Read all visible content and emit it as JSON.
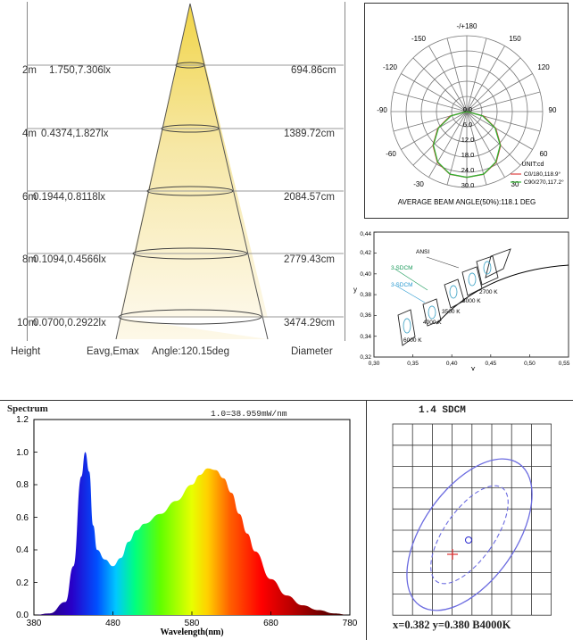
{
  "illuminance": {
    "rows": [
      {
        "height": "2m",
        "eavg_emax": "1.750,7.306lx",
        "diameter": "694.86cm"
      },
      {
        "height": "4m",
        "eavg_emax": "0.4374,1.827lx",
        "diameter": "1389.72cm"
      },
      {
        "height": "6m",
        "eavg_emax": "0.1944,0.8118lx",
        "diameter": "2084.57cm"
      },
      {
        "height": "8m",
        "eavg_emax": "0.1094,0.4566lx",
        "diameter": "2779.43cm"
      },
      {
        "height": "10m",
        "eavg_emax": "0.0700,0.2922lx",
        "diameter": "3474.29cm"
      }
    ],
    "footer": {
      "height": "Height",
      "eavg": "Eavg,Emax",
      "angle": "Angle:120.15deg",
      "diameter": "Diameter"
    }
  },
  "polar": {
    "angle_labels": {
      "top": "-/+180",
      "a_150l": "-150",
      "a_150r": "150",
      "a_120l": "-120",
      "a_120r": "120",
      "a_90l": "-90",
      "a_90r": "90",
      "a_60l": "-60",
      "a_60r": "60",
      "a_30l": "-30",
      "a_30r": "30"
    },
    "radial_labels": [
      "0.0",
      "6.0",
      "12.0",
      "18.0",
      "24.0",
      "30.0"
    ],
    "unit": "UNIT:cd",
    "legend": [
      {
        "label": "C0/180,118.9°",
        "color": "#e04040"
      },
      {
        "label": "C90/270,117.2°",
        "color": "#30b030"
      }
    ],
    "beam_text": "AVERAGE BEAM ANGLE(50%):118.1 DEG"
  },
  "cie": {
    "x_ticks": [
      "0,30",
      "0,35",
      "0,40",
      "0,45",
      "0,50",
      "0,55"
    ],
    "y_ticks": [
      "0,32",
      "0,34",
      "0,36",
      "0,38",
      "0,40",
      "0,42",
      "0,44"
    ],
    "x_label": "X",
    "y_label": "y",
    "annotations": {
      "ansi": "ANSI",
      "sdcm3a": "3 SDCM",
      "sdcm3b": "3 SDCM"
    },
    "cct_labels": [
      "2700 K",
      "3000 K",
      "3500 K",
      "4000 K",
      "6000 K"
    ]
  },
  "spectrum": {
    "title": "Spectrum",
    "scale_note": "1.0=38.959mW/nm",
    "x_label": "Wavelength(nm)",
    "x_ticks": [
      "380",
      "480",
      "580",
      "680",
      "780"
    ],
    "y_ticks": [
      "0.0",
      "0.2",
      "0.4",
      "0.6",
      "0.8",
      "1.0",
      "1.2"
    ]
  },
  "sdcm": {
    "title": "1.4 SDCM",
    "readout": "x=0.382 y=0.380 B4000K"
  },
  "chart_data": [
    {
      "type": "table",
      "title": "",
      "columns": [
        "Height",
        "Eavg,Emax",
        "Diameter"
      ],
      "rows": [
        [
          "2m",
          "1.750,7.306lx",
          "694.86cm"
        ],
        [
          "4m",
          "0.4374,1.827lx",
          "1389.72cm"
        ],
        [
          "6m",
          "0.1944,0.8118lx",
          "2084.57cm"
        ],
        [
          "8m",
          "0.1094,0.4566lx",
          "2779.43cm"
        ],
        [
          "10m",
          "0.0700,0.2922lx",
          "3474.29cm"
        ]
      ],
      "beam_angle_deg": 120.15
    },
    {
      "type": "line",
      "title": "",
      "polar": true,
      "angle_range": [
        -180,
        180
      ],
      "r_range": [
        0,
        30
      ],
      "series": [
        {
          "name": "C0/180,118.9°",
          "angle_deg": [
            -90,
            -75,
            -60,
            -45,
            -30,
            -15,
            0,
            15,
            30,
            45,
            60,
            75,
            90
          ],
          "values": [
            0,
            6.8,
            13.2,
            18.9,
            23.2,
            25.7,
            26.0,
            25.7,
            23.2,
            18.9,
            13.2,
            6.8,
            0
          ]
        },
        {
          "name": "C90/270,117.2°",
          "angle_deg": [
            -90,
            -75,
            -60,
            -45,
            -30,
            -15,
            0,
            15,
            30,
            45,
            60,
            75,
            90
          ],
          "values": [
            0,
            6.4,
            12.9,
            18.7,
            23.0,
            25.6,
            26.0,
            25.6,
            23.0,
            18.7,
            12.9,
            6.4,
            0
          ]
        }
      ]
    },
    {
      "type": "scatter",
      "title": "",
      "xlabel": "X",
      "ylabel": "y",
      "xlim": [
        0.3,
        0.55
      ],
      "ylim": [
        0.32,
        0.44
      ],
      "cct_points": [
        {
          "label": "2700 K",
          "x": 0.459,
          "y": 0.411
        },
        {
          "label": "3000 K",
          "x": 0.437,
          "y": 0.404
        },
        {
          "label": "3500 K",
          "x": 0.409,
          "y": 0.394
        },
        {
          "label": "4000 K",
          "x": 0.38,
          "y": 0.377
        },
        {
          "label": "6000 K",
          "x": 0.322,
          "y": 0.332
        }
      ],
      "measured_point": {
        "x": 0.382,
        "y": 0.38
      }
    },
    {
      "type": "area",
      "title": "Spectrum",
      "xlabel": "Wavelength(nm)",
      "ylabel": "",
      "xlim": [
        380,
        780
      ],
      "ylim": [
        0,
        1.2
      ],
      "x": [
        380,
        400,
        420,
        430,
        440,
        445,
        450,
        455,
        460,
        470,
        480,
        490,
        500,
        510,
        520,
        540,
        560,
        580,
        590,
        600,
        610,
        620,
        630,
        640,
        650,
        660,
        680,
        700,
        720,
        740,
        760,
        780
      ],
      "values": [
        0.0,
        0.01,
        0.08,
        0.3,
        0.85,
        1.0,
        0.88,
        0.55,
        0.4,
        0.34,
        0.3,
        0.35,
        0.45,
        0.52,
        0.56,
        0.62,
        0.7,
        0.8,
        0.86,
        0.9,
        0.89,
        0.84,
        0.75,
        0.62,
        0.5,
        0.39,
        0.22,
        0.12,
        0.06,
        0.03,
        0.01,
        0.0
      ]
    },
    {
      "type": "scatter",
      "title": "1.4 SDCM",
      "measured_point": {
        "x": 0.382,
        "y": 0.38
      },
      "target": "B4000K"
    }
  ]
}
